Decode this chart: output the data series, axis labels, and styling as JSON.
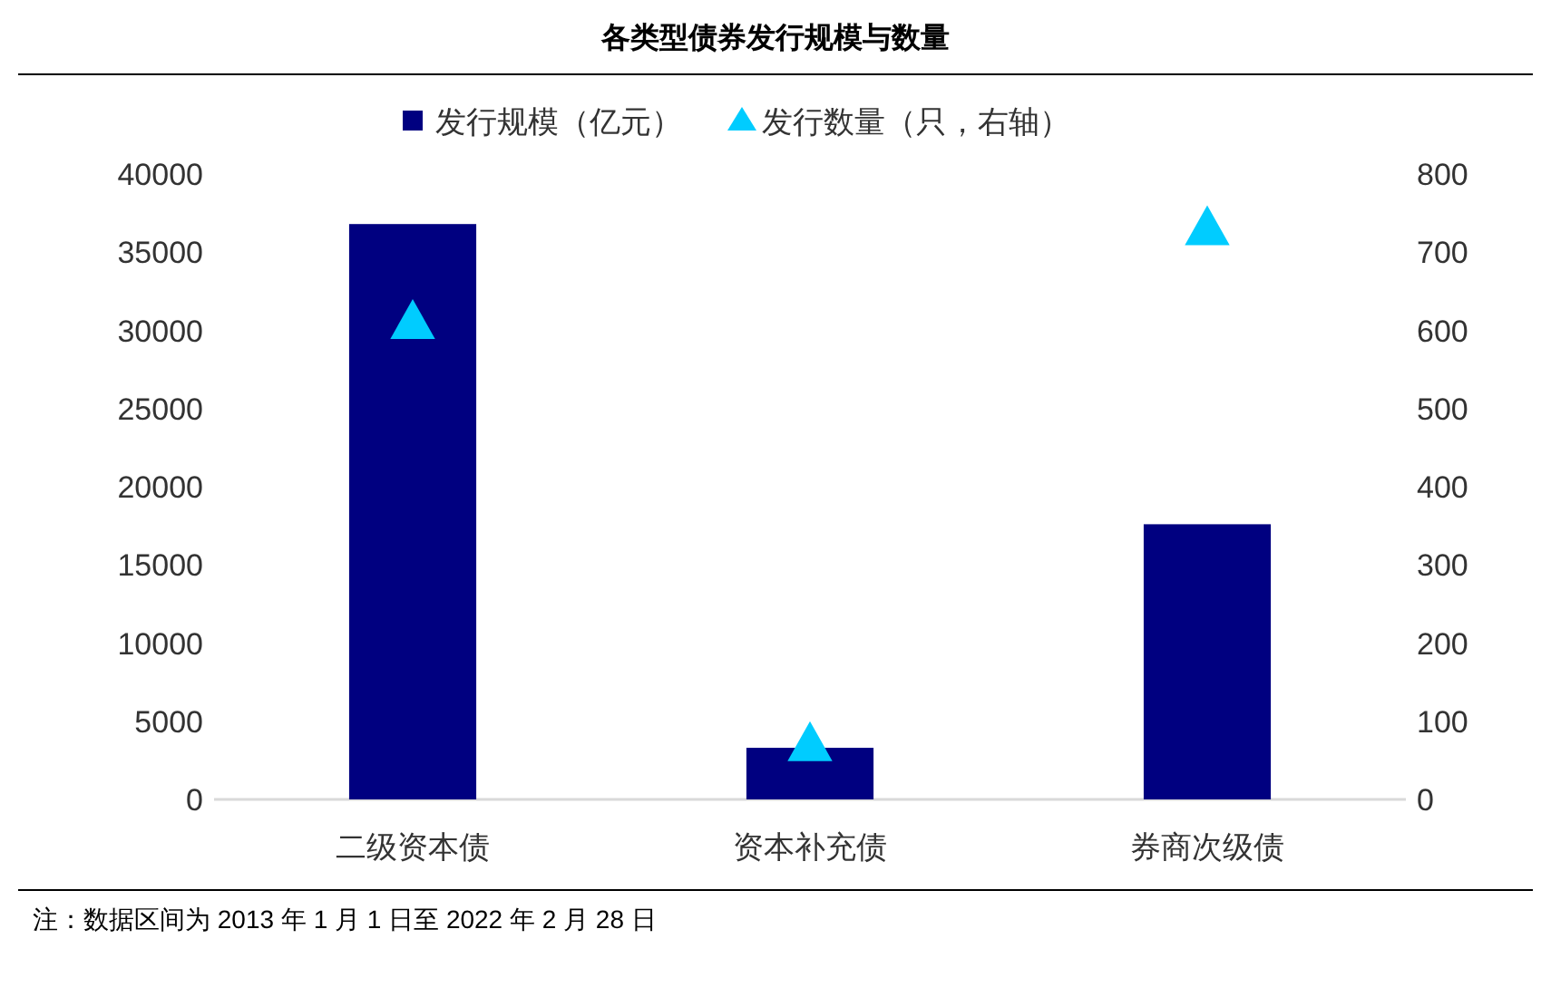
{
  "chart_data": {
    "type": "bar",
    "title": "各类型债券发行规模与数量",
    "categories": [
      "二级资本债",
      "资本补充债",
      "券商次级债"
    ],
    "series": [
      {
        "name": "发行规模（亿元）",
        "color": "#000080",
        "values": [
          36800,
          3300,
          17600
        ]
      },
      {
        "name": "发行数量（只，右轴）",
        "type": "scatter",
        "axis": "y2",
        "marker": "triangle",
        "color": "#00ccff",
        "values": [
          610,
          70,
          730
        ]
      }
    ],
    "ylim": [
      0,
      40000
    ],
    "yticks": [
      0,
      5000,
      10000,
      15000,
      20000,
      25000,
      30000,
      35000,
      40000
    ],
    "y2lim": [
      0,
      800
    ],
    "y2ticks": [
      0,
      100,
      200,
      300,
      400,
      500,
      600,
      700,
      800
    ],
    "legend": "top",
    "grid": false,
    "annotations": [
      "注：数据区间为 2013 年 1 月 1 日至 2022 年 2 月 28 日"
    ]
  }
}
